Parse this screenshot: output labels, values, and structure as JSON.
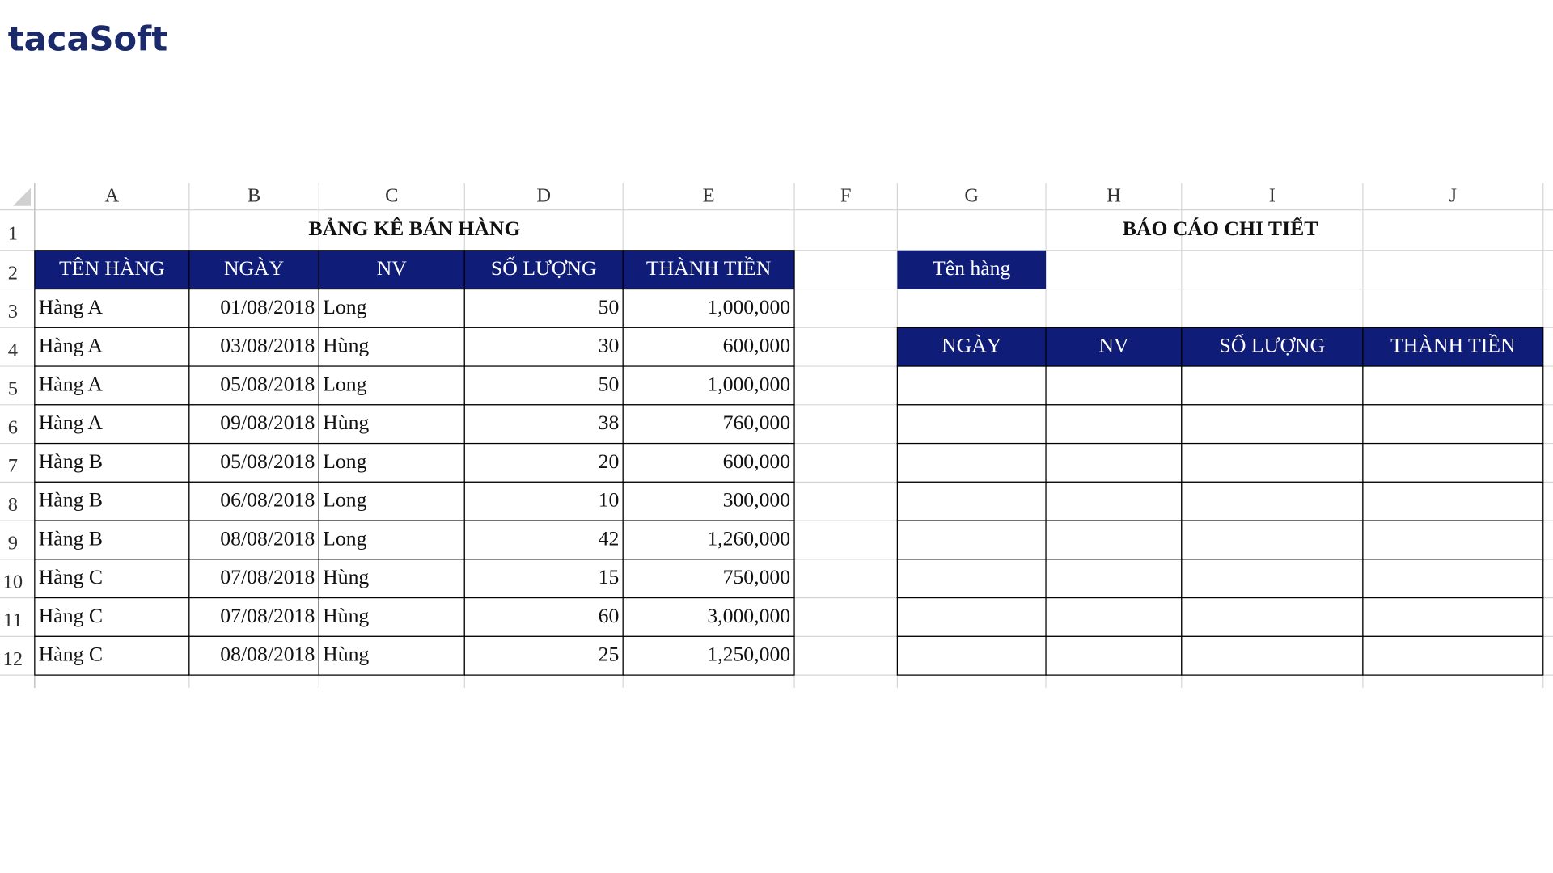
{
  "logo": "tacaSoft",
  "columns": [
    "A",
    "B",
    "C",
    "D",
    "E",
    "F",
    "G",
    "H",
    "I",
    "J"
  ],
  "row_numbers": [
    "1",
    "2",
    "3",
    "4",
    "5",
    "6",
    "7",
    "8",
    "9",
    "10",
    "11",
    "12"
  ],
  "left_table": {
    "title": "BẢNG KÊ BÁN HÀNG",
    "headers": [
      "TÊN HÀNG",
      "NGÀY",
      "NV",
      "SỐ LƯỢNG",
      "THÀNH TIỀN"
    ],
    "rows": [
      [
        "Hàng A",
        "01/08/2018",
        "Long",
        "50",
        "1,000,000"
      ],
      [
        "Hàng A",
        "03/08/2018",
        "Hùng",
        "30",
        "600,000"
      ],
      [
        "Hàng A",
        "05/08/2018",
        "Long",
        "50",
        "1,000,000"
      ],
      [
        "Hàng A",
        "09/08/2018",
        "Hùng",
        "38",
        "760,000"
      ],
      [
        "Hàng B",
        "05/08/2018",
        "Long",
        "20",
        "600,000"
      ],
      [
        "Hàng B",
        "06/08/2018",
        "Long",
        "10",
        "300,000"
      ],
      [
        "Hàng B",
        "08/08/2018",
        "Long",
        "42",
        "1,260,000"
      ],
      [
        "Hàng C",
        "07/08/2018",
        "Hùng",
        "15",
        "750,000"
      ],
      [
        "Hàng C",
        "07/08/2018",
        "Hùng",
        "60",
        "3,000,000"
      ],
      [
        "Hàng C",
        "08/08/2018",
        "Hùng",
        "25",
        "1,250,000"
      ]
    ]
  },
  "right_table": {
    "title": "BÁO CÁO CHI TIẾT",
    "label": "Tên hàng",
    "headers": [
      "NGÀY",
      "NV",
      "SỐ LƯỢNG",
      "THÀNH TIỀN"
    ]
  }
}
